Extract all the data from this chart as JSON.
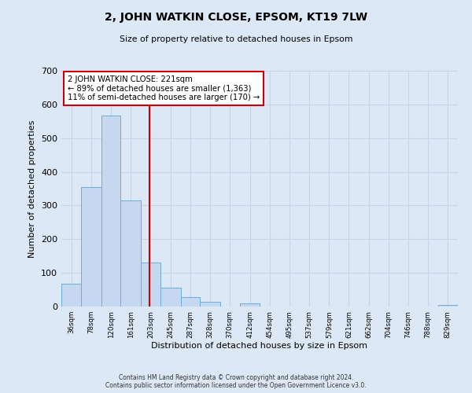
{
  "title": "2, JOHN WATKIN CLOSE, EPSOM, KT19 7LW",
  "subtitle": "Size of property relative to detached houses in Epsom",
  "xlabel": "Distribution of detached houses by size in Epsom",
  "ylabel": "Number of detached properties",
  "bar_edges": [
    36,
    78,
    120,
    161,
    203,
    245,
    287,
    328,
    370,
    412,
    454,
    495,
    537,
    579,
    621,
    662,
    704,
    746,
    788,
    829,
    871
  ],
  "bar_heights": [
    68,
    355,
    568,
    314,
    130,
    57,
    28,
    14,
    0,
    10,
    0,
    0,
    0,
    0,
    0,
    0,
    0,
    0,
    0,
    4
  ],
  "bar_color": "#c5d8f0",
  "bar_edge_color": "#6aaed6",
  "vline_x": 221,
  "vline_color": "#cc0000",
  "ylim": [
    0,
    700
  ],
  "yticks": [
    0,
    100,
    200,
    300,
    400,
    500,
    600,
    700
  ],
  "annotation_line1": "2 JOHN WATKIN CLOSE: 221sqm",
  "annotation_line2": "← 89% of detached houses are smaller (1,363)",
  "annotation_line3": "11% of semi-detached houses are larger (170) →",
  "annotation_box_color": "#ffffff",
  "annotation_box_edge_color": "#cc0000",
  "grid_color": "#c8d4e8",
  "bg_color": "#dce8f5",
  "footer1": "Contains HM Land Registry data © Crown copyright and database right 2024.",
  "footer2": "Contains public sector information licensed under the Open Government Licence v3.0."
}
